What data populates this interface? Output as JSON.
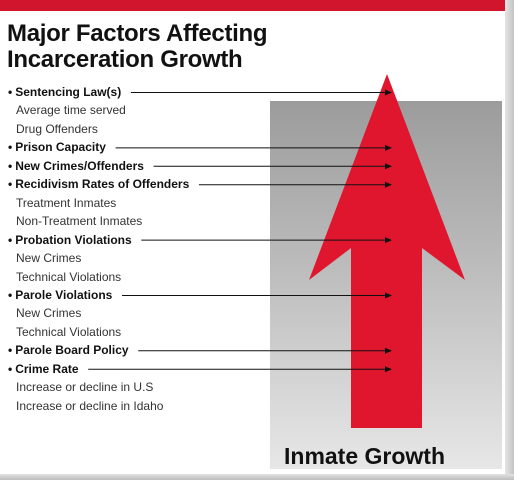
{
  "title": {
    "line1": "Major Factors Affecting",
    "line2": "Incarceration Growth"
  },
  "bullet_char": "•",
  "factors": [
    {
      "label": "Sentencing Law(s)",
      "sub": [
        "Average time served",
        "Drug Offenders"
      ]
    },
    {
      "label": "Prison Capacity",
      "sub": []
    },
    {
      "label": "New Crimes/Offenders",
      "sub": []
    },
    {
      "label": "Recidivism Rates of Offenders",
      "sub": [
        "Treatment Inmates",
        "Non-Treatment Inmates"
      ]
    },
    {
      "label": "Probation Violations",
      "sub": [
        "New Crimes",
        "Technical Violations"
      ]
    },
    {
      "label": "Parole Violations",
      "sub": [
        "New Crimes",
        "Technical Violations"
      ]
    },
    {
      "label": "Parole Board Policy",
      "sub": []
    },
    {
      "label": "Crime Rate",
      "sub": [
        "Increase or decline in U.S",
        "Increase or decline in Idaho"
      ]
    }
  ],
  "footer_label": "Inmate Growth",
  "colors": {
    "accent_red": "#d0152d",
    "arrow_red": "#e0162f",
    "panel_gray": "#bcbcbc",
    "text": "#111111"
  }
}
